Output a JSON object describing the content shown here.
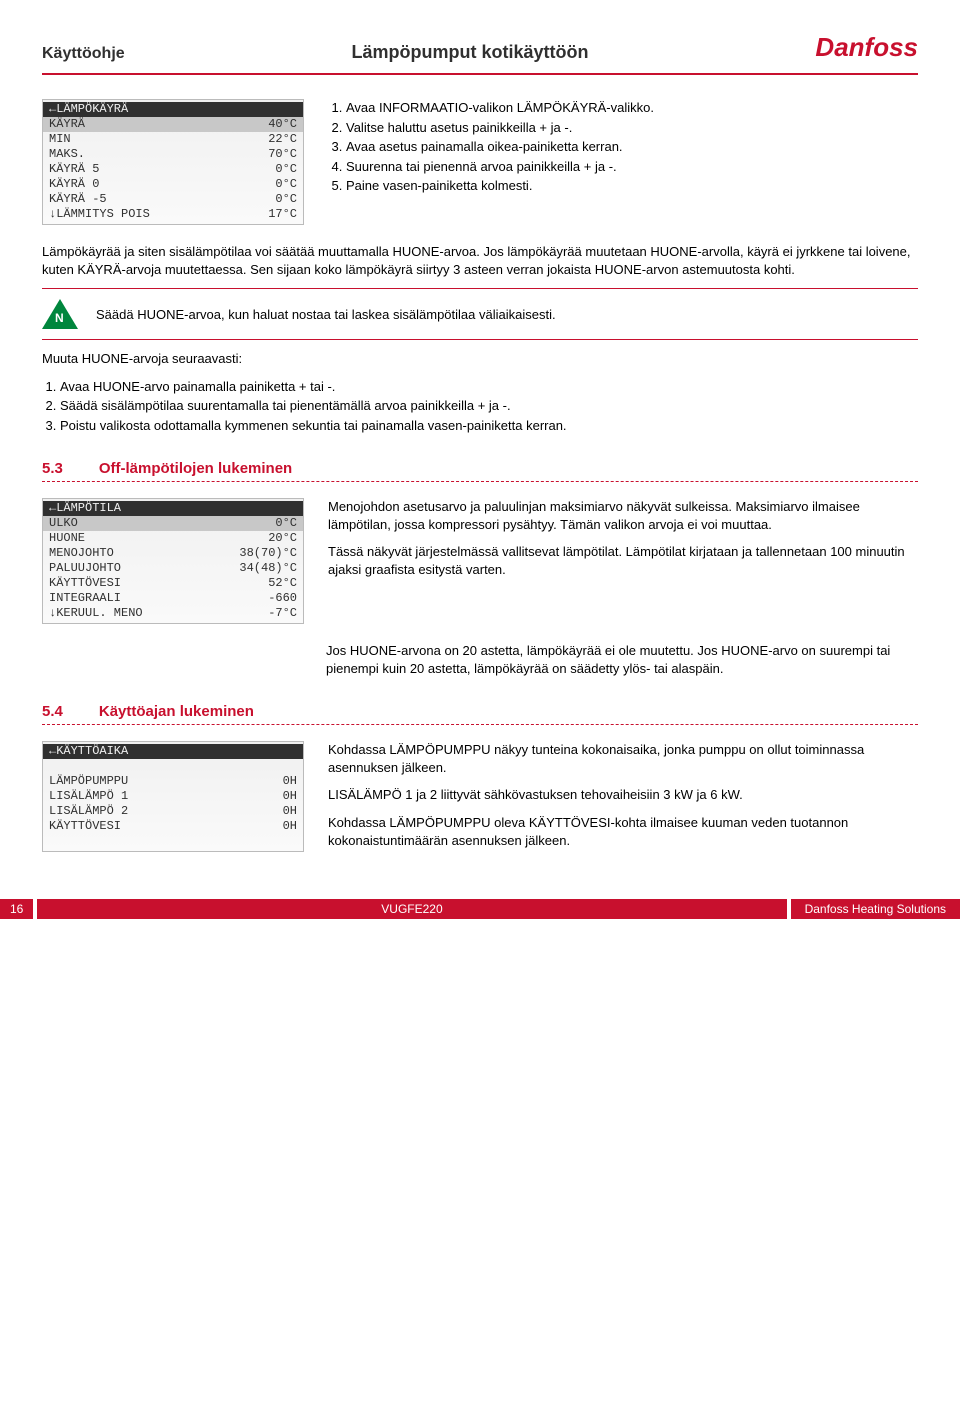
{
  "header": {
    "left": "Käyttöohje",
    "center": "Lämpöpumput kotikäyttöön",
    "logo": "Danfoss"
  },
  "lcd1": {
    "title": "←LÄMPÖKÄYRÄ",
    "rows": [
      {
        "l": "KÄYRÄ",
        "r": "40°C",
        "sel": true
      },
      {
        "l": "MIN",
        "r": "22°C",
        "sel": false
      },
      {
        "l": "MAKS.",
        "r": "70°C",
        "sel": false
      },
      {
        "l": "KÄYRÄ 5",
        "r": "0°C",
        "sel": false
      },
      {
        "l": "KÄYRÄ 0",
        "r": "0°C",
        "sel": false
      },
      {
        "l": "KÄYRÄ -5",
        "r": "0°C",
        "sel": false
      },
      {
        "l": "↓LÄMMITYS POIS",
        "r": "17°C",
        "sel": false
      }
    ]
  },
  "steps1": [
    "Avaa INFORMAATIO-valikon LÄMPÖKÄYRÄ-valikko.",
    "Valitse haluttu asetus painikkeilla + ja -.",
    "Avaa asetus painamalla oikea-painiketta kerran.",
    "Suurenna tai pienennä arvoa painikkeilla + ja -.",
    "Paine vasen-painiketta kolmesti."
  ],
  "para1": "Lämpökäyrää ja siten sisälämpötilaa voi säätää muuttamalla HUONE-arvoa. Jos lämpökäyrää muutetaan HUONE-arvolla, käyrä ei jyrkkene tai loivene, kuten KÄYRÄ-arvoja muutettaessa. Sen sijaan koko lämpökäyrä siirtyy 3 asteen verran jokaista HUONE-arvon astemuutosta kohti.",
  "note": {
    "icon": "N",
    "text": "Säädä HUONE-arvoa, kun haluat nostaa tai laskea sisälämpötilaa väliaikaisesti."
  },
  "para2": "Muuta HUONE-arvoja seuraavasti:",
  "steps2": [
    "Avaa HUONE-arvo painamalla painiketta + tai -.",
    "Säädä sisälämpötilaa suurentamalla tai pienentämällä arvoa painikkeilla + ja -.",
    "Poistu valikosta odottamalla kymmenen sekuntia tai painamalla vasen-painiketta kerran."
  ],
  "section53": {
    "num": "5.3",
    "title": "Off-lämpötilojen lukeminen"
  },
  "lcd2": {
    "title": "←LÄMPÖTILA",
    "rows": [
      {
        "l": "ULKO",
        "r": "0°C",
        "sel": true
      },
      {
        "l": "HUONE",
        "r": "20°C",
        "sel": false
      },
      {
        "l": "MENOJOHTO",
        "r": "38(70)°C",
        "sel": false
      },
      {
        "l": "PALUUJOHTO",
        "r": "34(48)°C",
        "sel": false
      },
      {
        "l": "KÄYTTÖVESI",
        "r": "52°C",
        "sel": false
      },
      {
        "l": "INTEGRAALI",
        "r": "-660",
        "sel": false
      },
      {
        "l": "↓KERUUL. MENO",
        "r": "-7°C",
        "sel": false
      }
    ]
  },
  "para53a": "Menojohdon asetusarvo ja paluulinjan maksimiarvo näkyvät sulkeissa. Maksimiarvo ilmaisee lämpötilan, jossa kompressori pysähtyy. Tämän valikon arvoja ei voi muuttaa.",
  "para53b": "Tässä näkyvät järjestelmässä vallitsevat lämpötilat. Lämpötilat kirjataan ja tallennetaan 100 minuutin ajaksi graafista esitystä varten.",
  "para53c": "Jos HUONE-arvona on 20 astetta, lämpökäyrää ei ole muutettu. Jos HUONE-arvo on suurempi tai pienempi kuin 20 astetta, lämpökäyrää on säädetty ylös- tai alaspäin.",
  "section54": {
    "num": "5.4",
    "title": "Käyttöajan lukeminen"
  },
  "lcd3": {
    "title": "←KÄYTTÖAIKA",
    "rows": [
      {
        "l": "",
        "r": "",
        "sel": false
      },
      {
        "l": "LÄMPÖPUMPPU",
        "r": "0H",
        "sel": false
      },
      {
        "l": "LISÄLÄMPÖ 1",
        "r": "0H",
        "sel": false
      },
      {
        "l": "LISÄLÄMPÖ 2",
        "r": "0H",
        "sel": false
      },
      {
        "l": "KÄYTTÖVESI",
        "r": "0H",
        "sel": false
      },
      {
        "l": "",
        "r": "",
        "sel": false
      }
    ]
  },
  "para54a": "Kohdassa LÄMPÖPUMPPU näkyy tunteina kokonaisaika, jonka pumppu on ollut toiminnassa asennuksen jälkeen.",
  "para54b": "LISÄLÄMPÖ 1 ja 2 liittyvät sähkövastuksen tehovaiheisiin 3 kW ja 6 kW.",
  "para54c": "Kohdassa LÄMPÖPUMPPU oleva KÄYTTÖVESI-kohta ilmaisee kuuman veden tuotannon kokonaistuntimäärän asennuksen jälkeen.",
  "footer": {
    "page": "16",
    "code": "VUGFE220",
    "right": "Danfoss Heating Solutions"
  }
}
